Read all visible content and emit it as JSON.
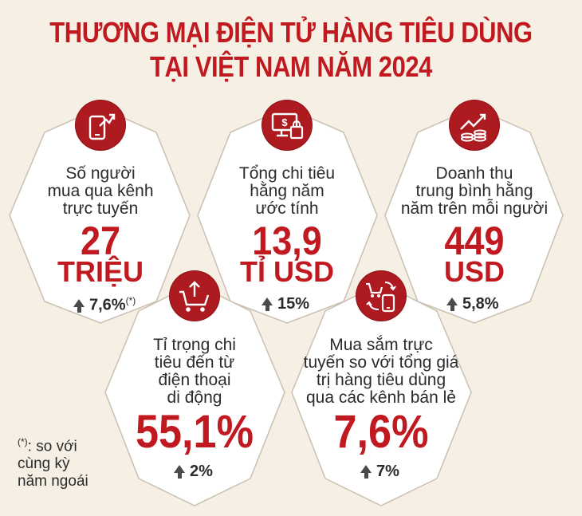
{
  "title_line1": "THƯƠNG MẠI ĐIỆN TỬ HÀNG TIÊU DÙNG",
  "title_line2": "TẠI VIỆT NAM NĂM 2024",
  "colors": {
    "accent": "#c0191f",
    "icon_bg": "#ad1a20",
    "background": "#f6efe4",
    "card": "#ffffff"
  },
  "cards": [
    {
      "icon": "mobile-growth-icon",
      "desc": [
        "Số người",
        "mua qua kênh",
        "trực tuyến"
      ],
      "value": "27",
      "unit": "TRIỆU",
      "growth": "7,6%",
      "growth_mark": "(*)"
    },
    {
      "icon": "computer-shopping-icon",
      "desc": [
        "Tổng chi tiêu",
        "hằng năm",
        "ước tính"
      ],
      "value": "13,9",
      "unit": "TỈ USD",
      "growth": "15%"
    },
    {
      "icon": "revenue-chart-icon",
      "desc": [
        "Doanh thu",
        "trung bình hằng",
        "năm trên mỗi người"
      ],
      "value": "449",
      "unit": "USD",
      "growth": "5,8%"
    },
    {
      "icon": "cart-upload-icon",
      "desc": [
        "Tỉ trọng chi",
        "tiêu đến từ",
        "điện thoại",
        "di động"
      ],
      "value": "55,1%",
      "growth": "2%"
    },
    {
      "icon": "cart-phone-exchange-icon",
      "desc": [
        "Mua sắm trực",
        "tuyến so với tổng giá",
        "trị hàng tiêu dùng",
        "qua các kênh bán lẻ"
      ],
      "value": "7,6%",
      "growth": "7%"
    }
  ],
  "note": {
    "mark": "(*)",
    "text": ": so với",
    "line2": "cùng kỳ",
    "line3": "năm ngoái"
  }
}
